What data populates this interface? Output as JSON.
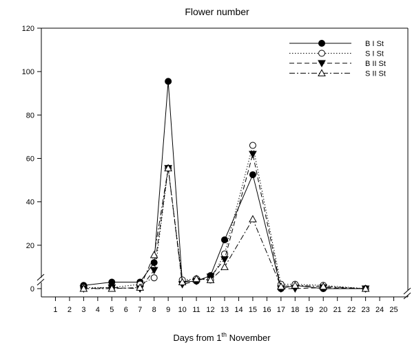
{
  "chart_data": {
    "type": "line",
    "title": "Flower number",
    "xlabel_main": "Days from 1",
    "xlabel_sup": "th",
    "xlabel_tail": " November",
    "ylabel": "",
    "ylim": [
      0,
      120
    ],
    "yticks": [
      0,
      20,
      40,
      60,
      80,
      100,
      120
    ],
    "xlim": [
      0,
      26
    ],
    "xticks": [
      1,
      2,
      3,
      4,
      5,
      6,
      7,
      8,
      9,
      10,
      11,
      12,
      13,
      14,
      15,
      16,
      17,
      18,
      19,
      20,
      21,
      22,
      23,
      24,
      25
    ],
    "axis_breaks": true,
    "grid": false,
    "legend_position": "top-right",
    "series": [
      {
        "name": "B  I St",
        "line_style": "solid",
        "marker": "filled-circle",
        "points": [
          [
            3,
            1.5
          ],
          [
            5,
            3
          ],
          [
            7,
            3
          ],
          [
            8,
            12
          ],
          [
            9,
            95.5
          ],
          [
            10,
            3
          ],
          [
            11,
            3.5
          ],
          [
            12,
            6
          ],
          [
            13,
            22.5
          ],
          [
            15,
            52.5
          ],
          [
            17,
            0
          ],
          [
            18,
            1.5
          ],
          [
            20,
            0
          ],
          [
            23,
            0
          ]
        ]
      },
      {
        "name": "S  I St",
        "line_style": "dotted",
        "marker": "open-circle",
        "points": [
          [
            3,
            0.5
          ],
          [
            5,
            0.5
          ],
          [
            7,
            2
          ],
          [
            8,
            5
          ],
          [
            9,
            55.5
          ],
          [
            10,
            4
          ],
          [
            11,
            4.5
          ],
          [
            12,
            4
          ],
          [
            13,
            16
          ],
          [
            15,
            66
          ],
          [
            17,
            2
          ],
          [
            18,
            2
          ],
          [
            20,
            1.5
          ],
          [
            23,
            0
          ]
        ]
      },
      {
        "name": "B  II St",
        "line_style": "dashed",
        "marker": "filled-triangle-down",
        "points": [
          [
            3,
            0
          ],
          [
            5,
            0.5
          ],
          [
            7,
            0
          ],
          [
            8,
            8.5
          ],
          [
            9,
            55.5
          ],
          [
            10,
            2
          ],
          [
            11,
            3.5
          ],
          [
            12,
            5.5
          ],
          [
            13,
            13.5
          ],
          [
            15,
            62
          ],
          [
            17,
            0
          ],
          [
            18,
            0
          ],
          [
            20,
            0.5
          ],
          [
            23,
            0
          ]
        ]
      },
      {
        "name": "S  II St",
        "line_style": "dash-dot",
        "marker": "open-triangle-up",
        "points": [
          [
            3,
            0
          ],
          [
            5,
            0
          ],
          [
            7,
            0.5
          ],
          [
            8,
            15.5
          ],
          [
            9,
            55.5
          ],
          [
            10,
            3
          ],
          [
            11,
            4.5
          ],
          [
            12,
            4
          ],
          [
            13,
            10
          ],
          [
            15,
            32
          ],
          [
            17,
            1
          ],
          [
            18,
            1.5
          ],
          [
            20,
            1
          ],
          [
            23,
            0
          ]
        ]
      }
    ]
  }
}
